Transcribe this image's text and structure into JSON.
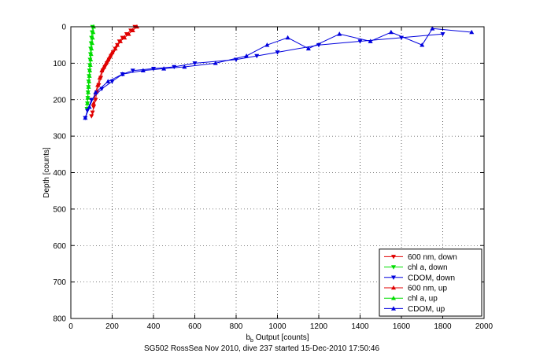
{
  "chart_data": {
    "type": "scatter",
    "title": "",
    "caption": "SG502 RossSea Nov 2010, dive 237 started 15-Dec-2010 17:50:46",
    "xlabel_main": "b",
    "xlabel_sub": "b",
    "xlabel_rest": " Output [counts]",
    "ylabel": "Depth [counts]",
    "xlim": [
      0,
      2000
    ],
    "ylim": [
      0,
      800
    ],
    "y_reversed": true,
    "xticks": [
      "0",
      "200",
      "400",
      "600",
      "800",
      "1000",
      "1200",
      "1400",
      "1600",
      "1800",
      "2000"
    ],
    "yticks": [
      "0",
      "100",
      "200",
      "300",
      "400",
      "500",
      "600",
      "700",
      "800"
    ],
    "grid": true,
    "legend_position": "bottom-right",
    "series": [
      {
        "name": "600 nm, down",
        "color": "#e00000",
        "marker": "triangle-down",
        "x": [
          310,
          290,
          270,
          250,
          235,
          225,
          215,
          205,
          195,
          185,
          175,
          165,
          155,
          145,
          135,
          125,
          120,
          110,
          105,
          100
        ],
        "y": [
          0,
          10,
          20,
          30,
          40,
          50,
          60,
          70,
          80,
          90,
          100,
          110,
          120,
          140,
          160,
          180,
          200,
          220,
          235,
          245
        ]
      },
      {
        "name": "chl a, down",
        "color": "#00dd00",
        "marker": "triangle-down",
        "x": [
          105,
          103,
          100,
          98,
          96,
          95,
          93,
          92,
          90,
          88,
          86,
          85,
          83,
          82,
          80,
          78
        ],
        "y": [
          0,
          15,
          30,
          45,
          60,
          75,
          90,
          105,
          120,
          135,
          150,
          165,
          180,
          195,
          210,
          225
        ]
      },
      {
        "name": "CDOM, down",
        "color": "#0000dd",
        "marker": "triangle-down",
        "x": [
          1800,
          1600,
          1400,
          1200,
          1000,
          900,
          800,
          600,
          500,
          400,
          300,
          250,
          200,
          150,
          100,
          80,
          70
        ],
        "y": [
          20,
          30,
          40,
          50,
          70,
          80,
          90,
          100,
          110,
          115,
          120,
          130,
          150,
          170,
          200,
          230,
          250
        ]
      },
      {
        "name": "600 nm, up",
        "color": "#e00000",
        "marker": "triangle-up",
        "x": [
          320,
          300,
          280,
          260,
          240,
          225,
          215,
          200,
          190,
          180,
          170,
          160,
          150,
          140,
          130,
          120,
          110
        ],
        "y": [
          0,
          10,
          20,
          30,
          40,
          50,
          60,
          70,
          80,
          90,
          100,
          110,
          120,
          140,
          160,
          180,
          210
        ]
      },
      {
        "name": "chl a, up",
        "color": "#00dd00",
        "marker": "triangle-up",
        "x": [
          110,
          108,
          105,
          103,
          100,
          98,
          96,
          94,
          92,
          90,
          88,
          86,
          84,
          82,
          80
        ],
        "y": [
          0,
          15,
          30,
          45,
          60,
          75,
          90,
          105,
          120,
          135,
          150,
          165,
          180,
          195,
          210
        ]
      },
      {
        "name": "CDOM, up",
        "color": "#0000dd",
        "marker": "triangle-up",
        "x": [
          1940,
          1750,
          1700,
          1550,
          1450,
          1300,
          1150,
          1050,
          950,
          850,
          700,
          550,
          450,
          350,
          250,
          180,
          120,
          90,
          70
        ],
        "y": [
          15,
          5,
          50,
          15,
          40,
          20,
          60,
          30,
          50,
          80,
          100,
          110,
          115,
          120,
          130,
          150,
          180,
          220,
          250
        ]
      }
    ]
  }
}
